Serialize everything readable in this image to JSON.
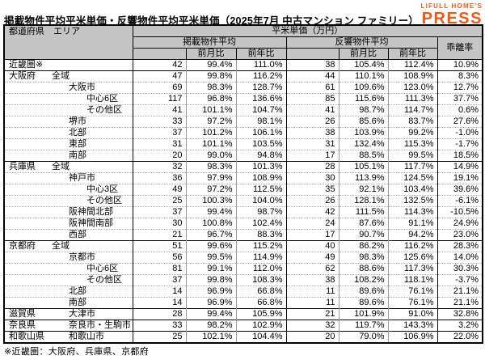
{
  "title": "掲載物件平均平米単価・反響物件平均平米単価（2025年7月 中古マンション ファミリー）",
  "logo": {
    "line1": "LIFULL HOME'S",
    "line2": "PRESS",
    "color": "#ed5a16"
  },
  "footnote": "※近畿圏：大阪府、兵庫県、京都府",
  "table": {
    "header": {
      "col_region": "都道府県　エリア",
      "unit_group": "平米単価（万円）",
      "listed_group": "掲載物件平均",
      "inquiry_group": "反響物件平均",
      "mom": "前月比",
      "yoy": "前年比",
      "divergence": "乖離率"
    },
    "value_column_names": [
      "listed-avg",
      "listed-mom",
      "listed-yoy",
      "inquiry-avg",
      "inquiry-mom",
      "inquiry-yoy",
      "divergence"
    ],
    "rows": [
      {
        "pref": "近畿圏※",
        "area": "",
        "indent": 0,
        "group_start": true,
        "values": [
          "42",
          "99.4%",
          "111.0%",
          "38",
          "105.4%",
          "112.4%",
          "10.9%"
        ]
      },
      {
        "pref": "大阪府",
        "area": "全域",
        "indent": 1,
        "group_start": true,
        "values": [
          "47",
          "99.8%",
          "116.2%",
          "44",
          "110.1%",
          "108.9%",
          "8.3%"
        ]
      },
      {
        "pref": "",
        "area": "大阪市",
        "indent": 2,
        "group_start": false,
        "values": [
          "69",
          "98.3%",
          "128.7%",
          "61",
          "109.6%",
          "123.0%",
          "12.7%"
        ]
      },
      {
        "pref": "",
        "area": "中心6区",
        "indent": 3,
        "group_start": false,
        "values": [
          "117",
          "96.8%",
          "136.6%",
          "85",
          "115.6%",
          "111.3%",
          "37.7%"
        ]
      },
      {
        "pref": "",
        "area": "その他区",
        "indent": 3,
        "group_start": false,
        "values": [
          "41",
          "101.1%",
          "104.7%",
          "41",
          "98.7%",
          "114.7%",
          "0.6%"
        ]
      },
      {
        "pref": "",
        "area": "堺市",
        "indent": 2,
        "group_start": false,
        "values": [
          "33",
          "97.2%",
          "98.1%",
          "26",
          "85.6%",
          "83.7%",
          "27.6%"
        ]
      },
      {
        "pref": "",
        "area": "北部",
        "indent": 2,
        "group_start": false,
        "values": [
          "37",
          "101.2%",
          "106.1%",
          "38",
          "103.9%",
          "99.2%",
          "-1.0%"
        ]
      },
      {
        "pref": "",
        "area": "東部",
        "indent": 2,
        "group_start": false,
        "values": [
          "31",
          "101.1%",
          "103.5%",
          "31",
          "132.4%",
          "115.3%",
          "-1.7%"
        ]
      },
      {
        "pref": "",
        "area": "南部",
        "indent": 2,
        "group_start": false,
        "values": [
          "20",
          "99.0%",
          "94.8%",
          "17",
          "88.5%",
          "99.5%",
          "18.5%"
        ]
      },
      {
        "pref": "兵庫県",
        "area": "全域",
        "indent": 1,
        "group_start": true,
        "values": [
          "32",
          "98.3%",
          "101.3%",
          "28",
          "105.1%",
          "117.7%",
          "14.9%"
        ]
      },
      {
        "pref": "",
        "area": "神戸市",
        "indent": 2,
        "group_start": false,
        "values": [
          "36",
          "97.9%",
          "108.9%",
          "30",
          "113.9%",
          "124.5%",
          "19.1%"
        ]
      },
      {
        "pref": "",
        "area": "中心3区",
        "indent": 3,
        "group_start": false,
        "values": [
          "49",
          "97.2%",
          "112.5%",
          "35",
          "92.1%",
          "103.4%",
          "39.6%"
        ]
      },
      {
        "pref": "",
        "area": "その他区",
        "indent": 3,
        "group_start": false,
        "values": [
          "25",
          "100.3%",
          "104.0%",
          "26",
          "128.1%",
          "132.5%",
          "-6.1%"
        ]
      },
      {
        "pref": "",
        "area": "阪神間北部",
        "indent": 2,
        "group_start": false,
        "values": [
          "37",
          "99.4%",
          "98.7%",
          "42",
          "111.5%",
          "114.3%",
          "-10.5%"
        ]
      },
      {
        "pref": "",
        "area": "阪神間南部",
        "indent": 2,
        "group_start": false,
        "values": [
          "30",
          "100.8%",
          "102.4%",
          "24",
          "87.6%",
          "91.1%",
          "24.9%"
        ]
      },
      {
        "pref": "",
        "area": "西部",
        "indent": 2,
        "group_start": false,
        "values": [
          "21",
          "96.7%",
          "88.3%",
          "17",
          "90.7%",
          "94.2%",
          "23.0%"
        ]
      },
      {
        "pref": "京都府",
        "area": "全域",
        "indent": 1,
        "group_start": true,
        "values": [
          "51",
          "99.6%",
          "115.2%",
          "40",
          "86.2%",
          "116.2%",
          "28.3%"
        ]
      },
      {
        "pref": "",
        "area": "京都市",
        "indent": 2,
        "group_start": false,
        "values": [
          "56",
          "99.5%",
          "114.9%",
          "49",
          "98.3%",
          "125.6%",
          "14.0%"
        ]
      },
      {
        "pref": "",
        "area": "中心6区",
        "indent": 3,
        "group_start": false,
        "values": [
          "81",
          "99.1%",
          "112.0%",
          "62",
          "88.6%",
          "117.3%",
          "30.3%"
        ]
      },
      {
        "pref": "",
        "area": "その他区",
        "indent": 3,
        "group_start": false,
        "values": [
          "37",
          "99.8%",
          "108.3%",
          "38",
          "108.2%",
          "118.1%",
          "-3.7%"
        ]
      },
      {
        "pref": "",
        "area": "北部",
        "indent": 2,
        "group_start": false,
        "values": [
          "14",
          "96.9%",
          "66.8%",
          "11",
          "89.6%",
          "76.1%",
          "21.1%"
        ]
      },
      {
        "pref": "",
        "area": "南部",
        "indent": 2,
        "group_start": false,
        "values": [
          "14",
          "96.9%",
          "66.8%",
          "11",
          "89.6%",
          "76.1%",
          "21.1%"
        ]
      },
      {
        "pref": "滋賀県",
        "area": "大津市",
        "indent": 2,
        "group_start": true,
        "values": [
          "28",
          "99.4%",
          "105.9%",
          "21",
          "101.9%",
          "91.0%",
          "32.8%"
        ]
      },
      {
        "pref": "奈良県",
        "area": "奈良市・生駒市",
        "indent": 2,
        "group_start": true,
        "values": [
          "33",
          "98.2%",
          "102.9%",
          "32",
          "119.7%",
          "143.3%",
          "3.2%"
        ]
      },
      {
        "pref": "和歌山県",
        "area": "和歌山市",
        "indent": 2,
        "group_start": true,
        "values": [
          "25",
          "102.1%",
          "104.4%",
          "20",
          "79.0%",
          "106.9%",
          "22.0%"
        ]
      }
    ]
  }
}
